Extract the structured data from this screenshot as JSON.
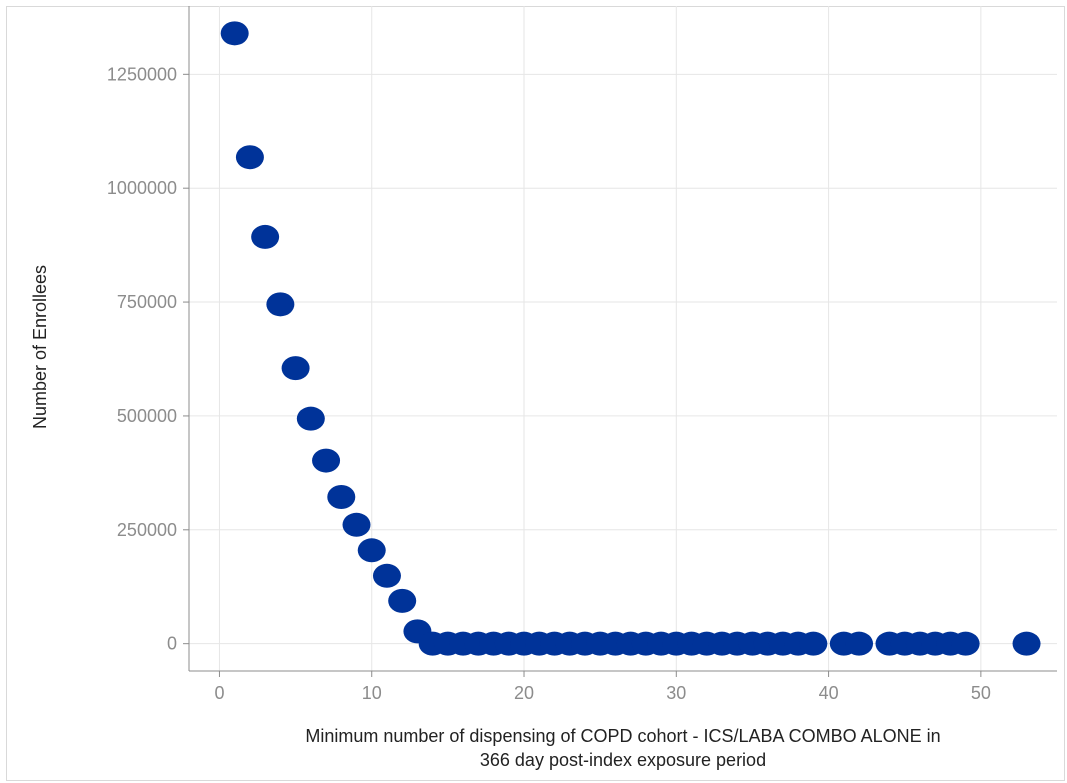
{
  "chart_data": {
    "type": "scatter",
    "title": "",
    "xlabel_lines": [
      "Minimum number of dispensing of COPD cohort - ICS/LABA COMBO ALONE in",
      "366 day post-index exposure period"
    ],
    "ylabel": "Number of Enrollees",
    "xlim": [
      -2,
      55
    ],
    "ylim": [
      -60000,
      1400000
    ],
    "x_ticks": [
      0,
      10,
      20,
      30,
      40,
      50
    ],
    "y_ticks": [
      0,
      250000,
      500000,
      750000,
      1000000,
      1250000
    ],
    "grid": true,
    "marker_color": "#003399",
    "series": [
      {
        "points": [
          [
            1,
            1340000
          ],
          [
            2,
            1068000
          ],
          [
            3,
            893000
          ],
          [
            4,
            745000
          ],
          [
            5,
            605000
          ],
          [
            6,
            494000
          ],
          [
            7,
            402000
          ],
          [
            8,
            322000
          ],
          [
            9,
            261000
          ],
          [
            10,
            205000
          ],
          [
            11,
            149000
          ],
          [
            12,
            94000
          ],
          [
            13,
            27000
          ],
          [
            14,
            0
          ],
          [
            15,
            0
          ],
          [
            16,
            0
          ],
          [
            17,
            0
          ],
          [
            18,
            0
          ],
          [
            19,
            0
          ],
          [
            20,
            0
          ],
          [
            21,
            0
          ],
          [
            22,
            0
          ],
          [
            23,
            0
          ],
          [
            24,
            0
          ],
          [
            25,
            0
          ],
          [
            26,
            0
          ],
          [
            27,
            0
          ],
          [
            28,
            0
          ],
          [
            29,
            0
          ],
          [
            30,
            0
          ],
          [
            31,
            0
          ],
          [
            32,
            0
          ],
          [
            33,
            0
          ],
          [
            34,
            0
          ],
          [
            35,
            0
          ],
          [
            36,
            0
          ],
          [
            37,
            0
          ],
          [
            38,
            0
          ],
          [
            39,
            0
          ],
          [
            41,
            0
          ],
          [
            42,
            0
          ],
          [
            44,
            0
          ],
          [
            45,
            0
          ],
          [
            46,
            0
          ],
          [
            47,
            0
          ],
          [
            48,
            0
          ],
          [
            49,
            0
          ],
          [
            53,
            0
          ]
        ]
      }
    ]
  }
}
